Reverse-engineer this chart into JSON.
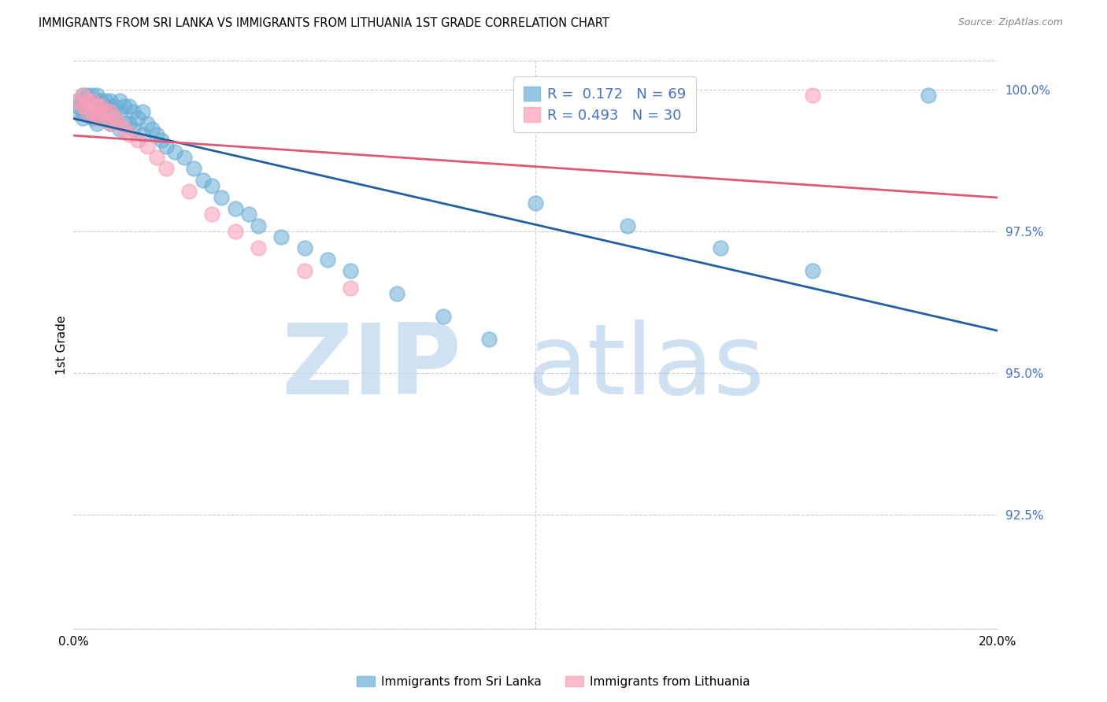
{
  "title": "IMMIGRANTS FROM SRI LANKA VS IMMIGRANTS FROM LITHUANIA 1ST GRADE CORRELATION CHART",
  "source": "Source: ZipAtlas.com",
  "ylabel": "1st Grade",
  "ylabel_right_labels": [
    "100.0%",
    "97.5%",
    "95.0%",
    "92.5%"
  ],
  "ylabel_right_values": [
    1.0,
    0.975,
    0.95,
    0.925
  ],
  "xlim": [
    0.0,
    0.2
  ],
  "ylim": [
    0.905,
    1.005
  ],
  "R_sri_lanka": 0.172,
  "N_sri_lanka": 69,
  "R_lithuania": 0.493,
  "N_lithuania": 30,
  "color_sri_lanka": "#6baed6",
  "color_lithuania": "#fa9fb5",
  "trendline_color_sri_lanka": "#2060a0",
  "trendline_color_lithuania": "#e05878",
  "legend_label_sri_lanka": "Immigrants from Sri Lanka",
  "legend_label_lithuania": "Immigrants from Lithuania",
  "background_color": "#ffffff",
  "grid_color": "#cccccc",
  "sri_lanka_x": [
    0.001,
    0.001,
    0.001,
    0.002,
    0.002,
    0.002,
    0.002,
    0.002,
    0.003,
    0.003,
    0.003,
    0.003,
    0.004,
    0.004,
    0.004,
    0.004,
    0.005,
    0.005,
    0.005,
    0.005,
    0.006,
    0.006,
    0.006,
    0.007,
    0.007,
    0.007,
    0.008,
    0.008,
    0.008,
    0.009,
    0.009,
    0.01,
    0.01,
    0.01,
    0.011,
    0.011,
    0.012,
    0.012,
    0.013,
    0.013,
    0.014,
    0.015,
    0.015,
    0.016,
    0.017,
    0.018,
    0.019,
    0.02,
    0.022,
    0.024,
    0.026,
    0.028,
    0.03,
    0.032,
    0.035,
    0.038,
    0.04,
    0.045,
    0.05,
    0.055,
    0.06,
    0.07,
    0.08,
    0.09,
    0.1,
    0.12,
    0.14,
    0.16,
    0.185
  ],
  "sri_lanka_y": [
    0.998,
    0.997,
    0.996,
    0.999,
    0.998,
    0.997,
    0.996,
    0.995,
    0.999,
    0.998,
    0.997,
    0.996,
    0.999,
    0.998,
    0.997,
    0.995,
    0.999,
    0.998,
    0.996,
    0.994,
    0.998,
    0.997,
    0.995,
    0.998,
    0.997,
    0.995,
    0.998,
    0.997,
    0.994,
    0.997,
    0.995,
    0.998,
    0.996,
    0.993,
    0.997,
    0.994,
    0.997,
    0.994,
    0.996,
    0.993,
    0.995,
    0.996,
    0.992,
    0.994,
    0.993,
    0.992,
    0.991,
    0.99,
    0.989,
    0.988,
    0.986,
    0.984,
    0.983,
    0.981,
    0.979,
    0.978,
    0.976,
    0.974,
    0.972,
    0.97,
    0.968,
    0.964,
    0.96,
    0.956,
    0.98,
    0.976,
    0.972,
    0.968,
    0.999
  ],
  "lithuania_x": [
    0.001,
    0.002,
    0.002,
    0.003,
    0.003,
    0.004,
    0.004,
    0.005,
    0.005,
    0.006,
    0.006,
    0.007,
    0.008,
    0.008,
    0.009,
    0.01,
    0.011,
    0.012,
    0.014,
    0.016,
    0.018,
    0.02,
    0.025,
    0.03,
    0.035,
    0.04,
    0.05,
    0.06,
    0.12,
    0.16
  ],
  "lithuania_y": [
    0.998,
    0.999,
    0.997,
    0.998,
    0.996,
    0.998,
    0.996,
    0.997,
    0.995,
    0.997,
    0.995,
    0.996,
    0.996,
    0.994,
    0.995,
    0.994,
    0.993,
    0.992,
    0.991,
    0.99,
    0.988,
    0.986,
    0.982,
    0.978,
    0.975,
    0.972,
    0.968,
    0.965,
    0.998,
    0.999
  ]
}
